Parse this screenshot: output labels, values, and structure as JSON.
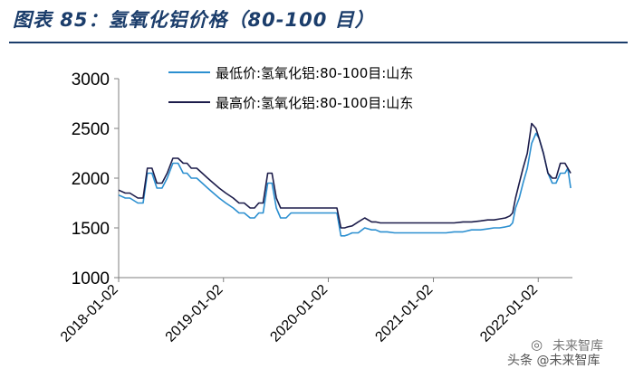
{
  "header": {
    "title": "图表 85：氢氧化铝价格（80-100 目）"
  },
  "watermark": {
    "line1": "未来智库",
    "line2": "头条 @未来智库",
    "icon": "wechat-icon"
  },
  "colors": {
    "title": "#1b3d6b",
    "low": "#2b8fd0",
    "high": "#1c1c4a",
    "axis": "#7f7f7f"
  },
  "chart_data": {
    "type": "line",
    "title": "",
    "xlabel": "",
    "ylabel": "",
    "ylim": [
      1000,
      3000
    ],
    "yticks": [
      1000,
      1500,
      2000,
      2500,
      3000
    ],
    "xlim": [
      "2018-01-02",
      "2022-05-01"
    ],
    "xticks": [
      "2018-01-02",
      "2019-01-02",
      "2020-01-02",
      "2021-01-02",
      "2022-01-02"
    ],
    "grid": false,
    "legend_position": "top",
    "series": [
      {
        "name": "最低价:氢氧化铝:80-100目:山东",
        "color": "#2b8fd0",
        "x": [
          "2018-01-02",
          "2018-01-25",
          "2018-02-10",
          "2018-03-10",
          "2018-03-28",
          "2018-04-12",
          "2018-04-28",
          "2018-05-15",
          "2018-06-02",
          "2018-06-20",
          "2018-07-10",
          "2018-07-28",
          "2018-08-15",
          "2018-08-28",
          "2018-09-12",
          "2018-10-01",
          "2018-10-20",
          "2018-11-08",
          "2018-11-28",
          "2018-12-18",
          "2019-01-10",
          "2019-02-05",
          "2019-02-25",
          "2019-03-15",
          "2019-04-05",
          "2019-04-20",
          "2019-05-05",
          "2019-05-20",
          "2019-06-05",
          "2019-06-20",
          "2019-07-05",
          "2019-07-20",
          "2019-08-08",
          "2019-08-25",
          "2019-09-12",
          "2019-10-01",
          "2019-10-20",
          "2019-11-08",
          "2019-11-25",
          "2019-12-15",
          "2020-01-05",
          "2020-02-01",
          "2020-02-15",
          "2020-02-28",
          "2020-03-10",
          "2020-03-25",
          "2020-04-15",
          "2020-05-08",
          "2020-06-01",
          "2020-06-15",
          "2020-07-01",
          "2020-07-25",
          "2020-08-20",
          "2020-09-15",
          "2020-10-15",
          "2020-11-15",
          "2020-12-15",
          "2021-01-15",
          "2021-02-15",
          "2021-03-15",
          "2021-04-15",
          "2021-05-15",
          "2021-06-15",
          "2021-07-10",
          "2021-08-01",
          "2021-08-20",
          "2021-09-10",
          "2021-09-25",
          "2021-10-05",
          "2021-10-15",
          "2021-10-28",
          "2021-11-10",
          "2021-11-25",
          "2021-12-10",
          "2021-12-25",
          "2022-01-05",
          "2022-01-20",
          "2022-02-05",
          "2022-02-20",
          "2022-03-05",
          "2022-03-20",
          "2022-04-05",
          "2022-04-15",
          "2022-04-25"
        ],
        "y": [
          1830,
          1800,
          1800,
          1750,
          1750,
          2050,
          2050,
          1900,
          1900,
          2000,
          2150,
          2150,
          2050,
          2050,
          2000,
          2000,
          1950,
          1900,
          1850,
          1800,
          1750,
          1700,
          1650,
          1650,
          1600,
          1600,
          1650,
          1650,
          1950,
          1950,
          1700,
          1600,
          1600,
          1650,
          1650,
          1650,
          1650,
          1650,
          1650,
          1650,
          1650,
          1650,
          1420,
          1420,
          1430,
          1450,
          1450,
          1500,
          1480,
          1480,
          1460,
          1460,
          1450,
          1450,
          1450,
          1450,
          1450,
          1450,
          1450,
          1460,
          1460,
          1480,
          1480,
          1490,
          1500,
          1500,
          1510,
          1520,
          1550,
          1700,
          1800,
          1950,
          2100,
          2350,
          2450,
          2400,
          2250,
          2050,
          1950,
          1950,
          2050,
          2050,
          2100,
          1900
        ]
      },
      {
        "name": "最高价:氢氧化铝:80-100目:山东",
        "color": "#1c1c4a",
        "x": [
          "2018-01-02",
          "2018-01-25",
          "2018-02-10",
          "2018-03-10",
          "2018-03-28",
          "2018-04-12",
          "2018-04-28",
          "2018-05-15",
          "2018-06-02",
          "2018-06-20",
          "2018-07-10",
          "2018-07-28",
          "2018-08-15",
          "2018-08-28",
          "2018-09-12",
          "2018-10-01",
          "2018-10-20",
          "2018-11-08",
          "2018-11-28",
          "2018-12-18",
          "2019-01-10",
          "2019-02-05",
          "2019-02-25",
          "2019-03-15",
          "2019-04-05",
          "2019-04-20",
          "2019-05-05",
          "2019-05-20",
          "2019-06-05",
          "2019-06-20",
          "2019-07-05",
          "2019-07-20",
          "2019-08-08",
          "2019-08-25",
          "2019-09-12",
          "2019-10-01",
          "2019-10-20",
          "2019-11-08",
          "2019-11-25",
          "2019-12-15",
          "2020-01-05",
          "2020-02-01",
          "2020-02-15",
          "2020-02-28",
          "2020-03-10",
          "2020-03-25",
          "2020-04-15",
          "2020-05-08",
          "2020-06-01",
          "2020-06-15",
          "2020-07-01",
          "2020-07-25",
          "2020-08-20",
          "2020-09-15",
          "2020-10-15",
          "2020-11-15",
          "2020-12-15",
          "2021-01-15",
          "2021-02-15",
          "2021-03-15",
          "2021-04-15",
          "2021-05-15",
          "2021-06-15",
          "2021-07-10",
          "2021-08-01",
          "2021-08-20",
          "2021-09-10",
          "2021-09-25",
          "2021-10-05",
          "2021-10-15",
          "2021-10-28",
          "2021-11-10",
          "2021-11-25",
          "2021-12-10",
          "2021-12-25",
          "2022-01-05",
          "2022-01-20",
          "2022-02-05",
          "2022-02-20",
          "2022-03-05",
          "2022-03-20",
          "2022-04-05",
          "2022-04-15",
          "2022-04-25"
        ],
        "y": [
          1880,
          1850,
          1850,
          1800,
          1800,
          2100,
          2100,
          1950,
          1950,
          2050,
          2200,
          2200,
          2150,
          2150,
          2100,
          2100,
          2050,
          2000,
          1950,
          1900,
          1850,
          1800,
          1750,
          1750,
          1700,
          1700,
          1750,
          1750,
          2050,
          2050,
          1800,
          1700,
          1700,
          1700,
          1700,
          1700,
          1700,
          1700,
          1700,
          1700,
          1700,
          1700,
          1500,
          1500,
          1510,
          1520,
          1560,
          1600,
          1560,
          1560,
          1550,
          1550,
          1550,
          1550,
          1550,
          1550,
          1550,
          1550,
          1550,
          1550,
          1560,
          1560,
          1570,
          1580,
          1580,
          1590,
          1600,
          1620,
          1650,
          1800,
          1950,
          2100,
          2250,
          2550,
          2500,
          2400,
          2250,
          2050,
          2000,
          2000,
          2150,
          2150,
          2100,
          2050
        ]
      }
    ]
  }
}
